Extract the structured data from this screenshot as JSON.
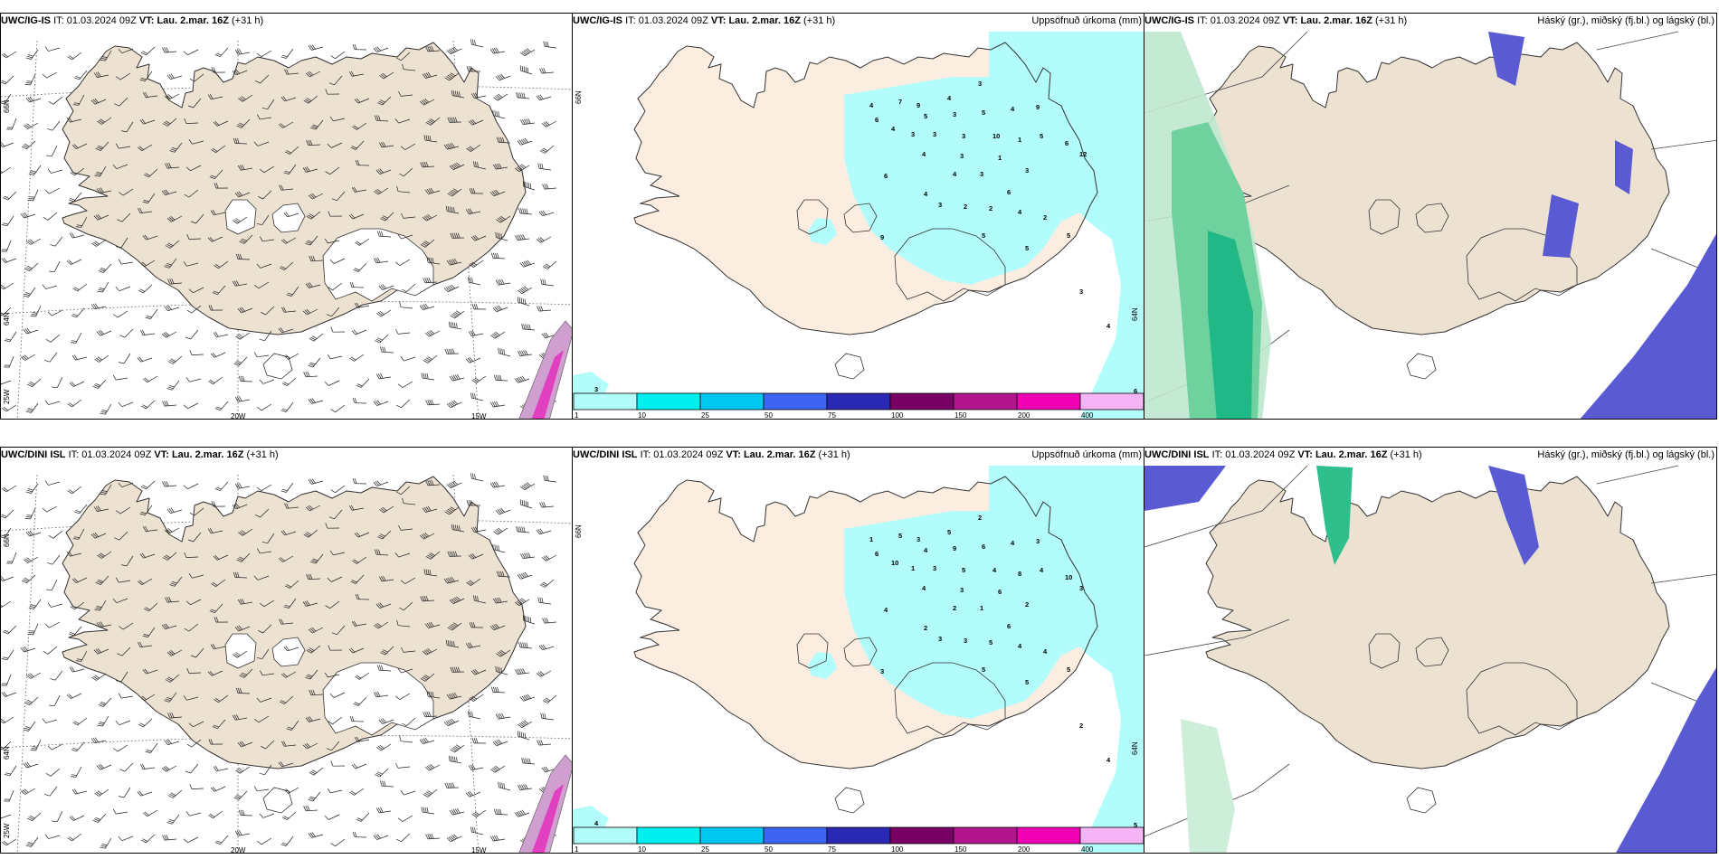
{
  "colors": {
    "land": "#ede1d2",
    "land_light": "#fbeee1",
    "precip_light": "#b3fcfc",
    "cloud_high": "#5a5ad2",
    "cloud_mid": "#3cb98c",
    "coast": "#333333"
  },
  "row_top": {
    "model": "UWC/IG-IS",
    "it_label": "IT:",
    "it_value": "01.03.2024 09Z",
    "vt_label": "VT:",
    "vt_value": "Lau. 2.mar. 16Z",
    "lead": "(+31 h)"
  },
  "row_bottom": {
    "model": "UWC/DINI ISL",
    "it_label": "IT:",
    "it_value": "01.03.2024 09Z",
    "vt_label": "VT:",
    "vt_value": "Lau. 2.mar. 16Z",
    "lead": "(+31 h)"
  },
  "panels": {
    "wind_title": "",
    "precip_title": "Uppsöfnuð úrkoma (mm)",
    "cloud_title": "Háský (gr.), miðský (fj.bl.) og lágský (bl.)"
  },
  "grid_labels": {
    "lat_66": "66N",
    "lat_64": "64N",
    "lon_25": "25W",
    "lon_20": "20W",
    "lon_15": "15W"
  },
  "colorbar": {
    "ticks": [
      "1",
      "10",
      "25",
      "50",
      "75",
      "100",
      "150",
      "200",
      "400"
    ],
    "colors": [
      "#b3fcfc",
      "#00f0f0",
      "#00c8f0",
      "#3c64f0",
      "#2828b4",
      "#780064",
      "#b4148c",
      "#f000b4",
      "#f5b4f5"
    ]
  },
  "precip_numbers_top": [
    "4",
    "7",
    "9",
    "4",
    "3",
    "6",
    "5",
    "3",
    "5",
    "4",
    "9",
    "4",
    "3",
    "3",
    "3",
    "10",
    "1",
    "5",
    "6",
    "3",
    "12",
    "4",
    "1",
    "3",
    "6",
    "4",
    "3",
    "6",
    "4",
    "3",
    "2",
    "2",
    "4",
    "2",
    "5",
    "5",
    "9",
    "5",
    "3",
    "4",
    "6",
    "3"
  ],
  "precip_numbers_bottom": [
    "1",
    "5",
    "3",
    "5",
    "2",
    "6",
    "4",
    "9",
    "6",
    "4",
    "3",
    "10",
    "1",
    "3",
    "5",
    "4",
    "8",
    "4",
    "10",
    "3",
    "3",
    "4",
    "6",
    "2",
    "4",
    "2",
    "1",
    "6",
    "2",
    "3",
    "3",
    "5",
    "4",
    "4",
    "5",
    "5",
    "3",
    "5",
    "2",
    "4",
    "5",
    "4"
  ]
}
